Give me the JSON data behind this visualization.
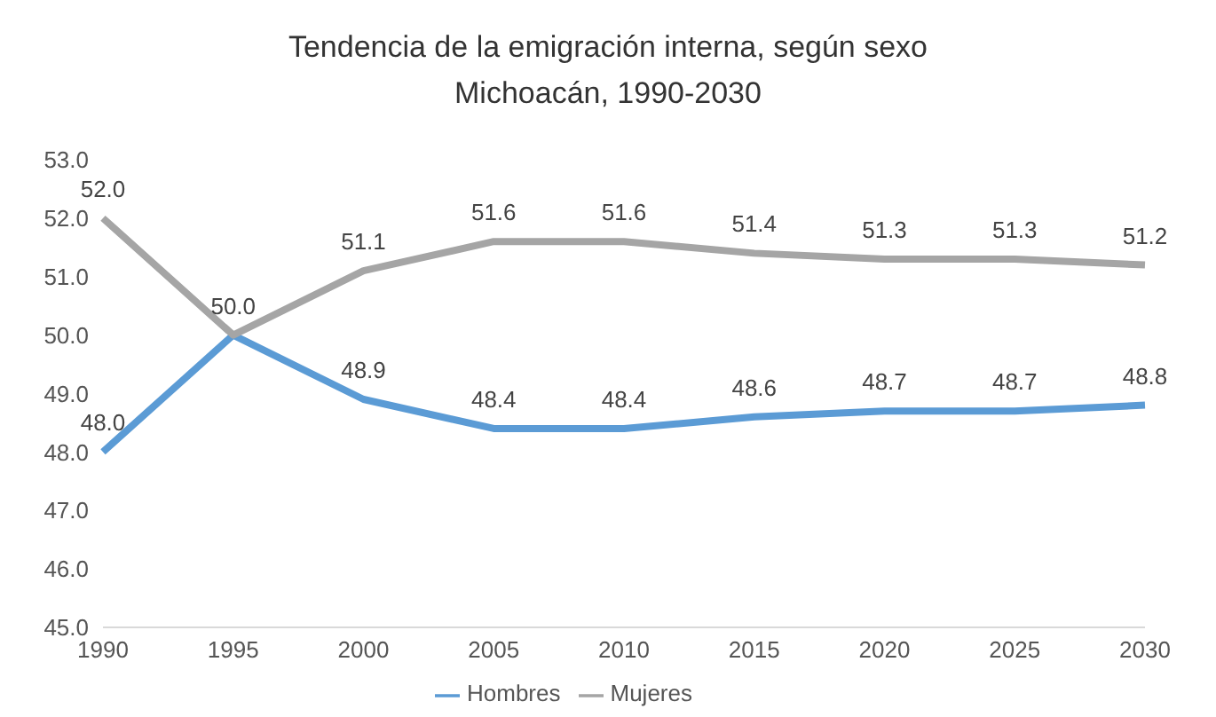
{
  "chart_data": {
    "type": "line",
    "title": "Tendencia de la emigración interna, según sexo\nMichoacán, 1990-2030",
    "categories": [
      "1990",
      "1995",
      "2000",
      "2005",
      "2010",
      "2015",
      "2020",
      "2025",
      "2030"
    ],
    "series": [
      {
        "name": "Hombres",
        "color": "#5b9bd5",
        "values": [
          48.0,
          50.0,
          48.9,
          48.4,
          48.4,
          48.6,
          48.7,
          48.7,
          48.8
        ],
        "value_labels": [
          "48.0",
          null,
          "48.9",
          "48.4",
          "48.4",
          "48.6",
          "48.7",
          "48.7",
          "48.8"
        ]
      },
      {
        "name": "Mujeres",
        "color": "#a5a5a5",
        "values": [
          52.0,
          50.0,
          51.1,
          51.6,
          51.6,
          51.4,
          51.3,
          51.3,
          51.2
        ],
        "value_labels": [
          "52.0",
          "50.0",
          "51.1",
          "51.6",
          "51.6",
          "51.4",
          "51.3",
          "51.3",
          "51.2"
        ]
      }
    ],
    "ylim": [
      45,
      53
    ],
    "yticks": [
      {
        "value": 45,
        "label": "45.0"
      },
      {
        "value": 46,
        "label": "46.0"
      },
      {
        "value": 47,
        "label": "47.0"
      },
      {
        "value": 48,
        "label": "48.0"
      },
      {
        "value": 49,
        "label": "49.0"
      },
      {
        "value": 50,
        "label": "50.0"
      },
      {
        "value": 51,
        "label": "51.0"
      },
      {
        "value": 52,
        "label": "52.0"
      },
      {
        "value": 53,
        "label": "53.0"
      }
    ],
    "grid": false,
    "legend": "bottom",
    "marker": "none",
    "line_style": "solid"
  }
}
